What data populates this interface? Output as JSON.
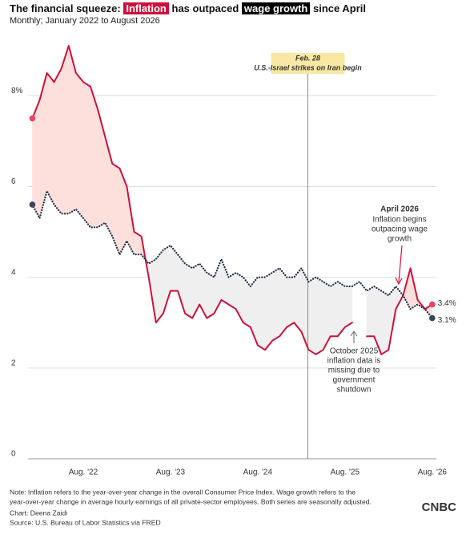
{
  "chart_data": {
    "type": "line",
    "title": {
      "prefix": "The financial squeeze:",
      "highlight1": "Inflation",
      "middle": "has outpaced",
      "highlight2": "wage growth",
      "suffix": "since April"
    },
    "subtitle": "Monthly; January 2022 to August 2026",
    "categories": [
      null,
      null,
      null,
      null,
      null,
      null,
      null,
      "Aug. '22",
      null,
      null,
      null,
      null,
      null,
      null,
      null,
      null,
      null,
      null,
      null,
      "Aug. '23",
      null,
      null,
      null,
      null,
      null,
      null,
      null,
      null,
      null,
      null,
      null,
      "Aug. '24",
      null,
      null,
      null,
      null,
      null,
      null,
      null,
      null,
      null,
      null,
      null,
      "Aug. '25",
      null,
      null,
      null,
      null,
      null,
      null,
      null,
      null,
      null,
      null,
      null,
      "Aug. '26"
    ],
    "series": [
      {
        "name": "Inflation",
        "color": "#d0103a",
        "style": "solid",
        "values": [
          7.5,
          7.9,
          8.5,
          8.3,
          8.6,
          9.1,
          8.5,
          8.3,
          8.2,
          7.7,
          7.1,
          6.5,
          6.4,
          6.0,
          5.0,
          4.9,
          4.0,
          3.0,
          3.2,
          3.7,
          3.7,
          3.2,
          3.1,
          3.4,
          3.1,
          3.2,
          3.5,
          3.4,
          3.3,
          3.0,
          2.9,
          2.5,
          2.4,
          2.6,
          2.7,
          2.9,
          3.0,
          2.8,
          2.4,
          2.3,
          2.4,
          2.7,
          2.7,
          2.9,
          3.0,
          null,
          2.7,
          2.7,
          2.3,
          2.4,
          3.3,
          3.6,
          4.2,
          3.5,
          3.3,
          3.4
        ],
        "value_labels": [
          null,
          null,
          null,
          null,
          null,
          null,
          null,
          null,
          null,
          null,
          null,
          null,
          null,
          null,
          null,
          null,
          null,
          null,
          null,
          null,
          null,
          null,
          null,
          null,
          null,
          null,
          null,
          null,
          null,
          null,
          null,
          null,
          null,
          null,
          null,
          null,
          null,
          null,
          null,
          null,
          null,
          null,
          null,
          null,
          null,
          null,
          null,
          null,
          null,
          null,
          null,
          null,
          null,
          null,
          null,
          "3.4%"
        ]
      },
      {
        "name": "wage growth",
        "color": "#1c2b45",
        "style": "dotted",
        "values": [
          5.6,
          5.3,
          5.9,
          5.6,
          5.4,
          5.4,
          5.5,
          5.3,
          5.1,
          5.1,
          5.2,
          4.9,
          4.5,
          4.8,
          4.5,
          4.5,
          4.3,
          4.4,
          4.6,
          4.7,
          4.5,
          4.3,
          4.2,
          4.3,
          4.1,
          4.0,
          4.4,
          4.0,
          4.1,
          4.0,
          3.8,
          4.0,
          4.0,
          4.1,
          4.2,
          4.0,
          4.0,
          4.2,
          3.9,
          4.0,
          3.9,
          3.8,
          3.9,
          3.8,
          3.8,
          3.9,
          3.7,
          3.8,
          3.7,
          3.6,
          3.8,
          3.6,
          3.3,
          3.4,
          3.3,
          3.1
        ],
        "value_labels": [
          null,
          null,
          null,
          null,
          null,
          null,
          null,
          null,
          null,
          null,
          null,
          null,
          null,
          null,
          null,
          null,
          null,
          null,
          null,
          null,
          null,
          null,
          null,
          null,
          null,
          null,
          null,
          null,
          null,
          null,
          null,
          null,
          null,
          null,
          null,
          null,
          null,
          null,
          null,
          null,
          null,
          null,
          null,
          null,
          null,
          null,
          null,
          null,
          null,
          null,
          null,
          null,
          null,
          null,
          null,
          "3.1%"
        ]
      }
    ],
    "above_color": "#fde0dc",
    "below_color": "#efefef",
    "ylim": [
      0,
      8.8
    ],
    "yticks": [
      0,
      2,
      4,
      6,
      {
        "value": 8,
        "label": "8%"
      }
    ],
    "grid": true,
    "annotations": [
      {
        "label": "Feb. 28",
        "text": "U.S.-Israel strikes on Iran begin",
        "x_index": 37.9
      },
      {
        "lines": [
          "October 2025",
          "inflation data is",
          "missing due to",
          "government",
          "shutdown"
        ]
      },
      {
        "title": "April 2026",
        "lines": [
          "Inflation begins",
          "outpacing wage",
          "growth"
        ]
      }
    ],
    "note": [
      "Note: Inflation refers to the year-over-year change in the overall Consumer Price Index. Wage growth refers to the",
      "year-over-year change in average hourly earnings of all private-sector employees. Both series are seasonally adjusted."
    ],
    "credit": "Chart: Deena Zaidi",
    "source": "Source: U.S. Bureau of Labor Statistics via FRED",
    "logo": "CNBC"
  }
}
